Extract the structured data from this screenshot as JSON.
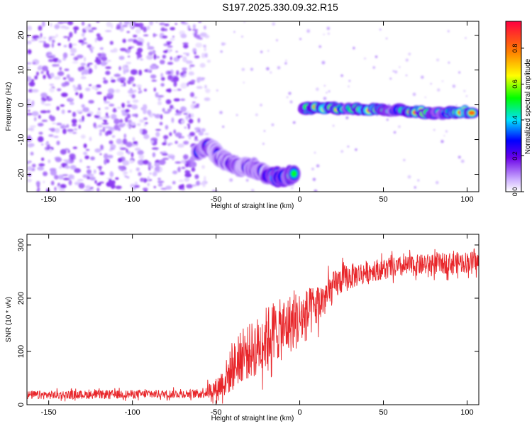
{
  "figure_title": "S197.2025.330.09.32.R15",
  "chart_data": [
    {
      "type": "heatmap",
      "name": "spectrogram",
      "xlabel": "Height of straight line (km)",
      "ylabel": "Frequency (Hz)",
      "xlim": [
        -163,
        107
      ],
      "ylim": [
        -25,
        24
      ],
      "xticks": [
        -150,
        -100,
        -50,
        0,
        50,
        100
      ],
      "yticks": [
        -20,
        -10,
        0,
        10,
        20
      ],
      "colorbar": {
        "label": "Normalized spectral amplitude",
        "range": [
          0,
          0.95
        ],
        "ticks": [
          0.0,
          0.2,
          0.4,
          0.6,
          0.8
        ]
      },
      "features": [
        {
          "name": "broadband noise",
          "x_range": [
            -163,
            -55
          ],
          "y_range": [
            -25,
            24
          ],
          "level": 0.12
        },
        {
          "name": "descending segment",
          "points": [
            [
              -60,
              -13
            ],
            [
              -55,
              -12
            ],
            [
              -45,
              -16
            ],
            [
              -35,
              -18
            ],
            [
              -28,
              -18
            ],
            [
              -20,
              -20
            ],
            [
              -10,
              -21
            ],
            [
              -3,
              -20
            ]
          ],
          "level": 0.3
        },
        {
          "name": "main ridge",
          "points": [
            [
              2,
              -1
            ],
            [
              10,
              -1
            ],
            [
              20,
              -1
            ],
            [
              30,
              -1
            ],
            [
              45,
              -1.5
            ],
            [
              60,
              -1.5
            ],
            [
              70,
              -2
            ],
            [
              85,
              -2.5
            ],
            [
              95,
              -2
            ],
            [
              103,
              -2
            ]
          ],
          "level": 0.92
        }
      ]
    },
    {
      "type": "line",
      "name": "snr",
      "xlabel": "Height of straight line (km)",
      "ylabel": "SNR (10 * v/v)",
      "xlim": [
        -163,
        107
      ],
      "ylim": [
        0,
        320
      ],
      "xticks": [
        -150,
        -100,
        -50,
        0,
        50,
        100
      ],
      "yticks": [
        0,
        100,
        200,
        300
      ],
      "color": "#e8262a",
      "trend": {
        "x": [
          -163,
          -120,
          -80,
          -60,
          -50,
          -45,
          -40,
          -35,
          -30,
          -25,
          -20,
          -15,
          -10,
          -5,
          0,
          5,
          10,
          15,
          20,
          25,
          30,
          35,
          40,
          50,
          60,
          70,
          80,
          90,
          100,
          107
        ],
        "y": [
          18,
          19,
          20,
          21,
          30,
          45,
          70,
          90,
          100,
          110,
          125,
          140,
          140,
          155,
          160,
          170,
          185,
          200,
          220,
          235,
          240,
          245,
          250,
          255,
          258,
          262,
          264,
          266,
          268,
          268
        ]
      },
      "noise": {
        "x": [
          -163,
          -60,
          -50,
          -40,
          -20,
          0,
          20,
          40,
          107
        ],
        "amplitude": [
          8,
          8,
          20,
          45,
          60,
          55,
          30,
          20,
          20
        ]
      }
    }
  ]
}
